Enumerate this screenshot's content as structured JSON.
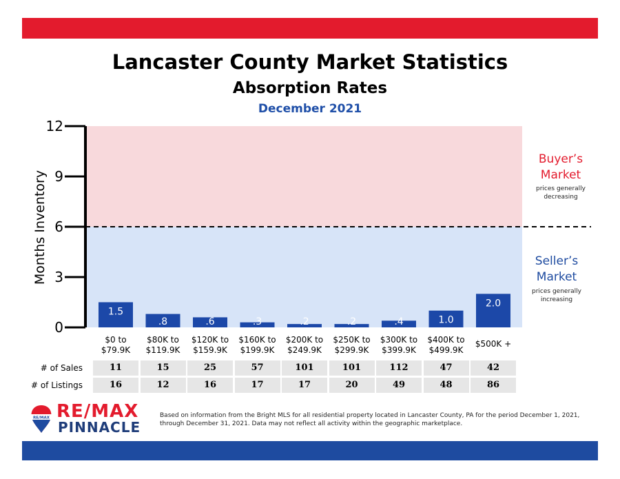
{
  "colors": {
    "red": "#e31b2d",
    "blue": "#1e4ba0",
    "pink_zone": "#f8d9dc",
    "blue_zone": "#d7e4f8",
    "bar": "#1c48a8"
  },
  "header": {
    "title": "Lancaster County Market Statistics",
    "subtitle": "Absorption Rates",
    "period": "December 2021"
  },
  "zones": {
    "buyer": {
      "title1": "Buyer’s",
      "title2": "Market",
      "note1": "prices generally",
      "note2": "decreasing"
    },
    "seller": {
      "title1": "Seller’s",
      "title2": "Market",
      "note1": "prices generally",
      "note2": "increasing"
    }
  },
  "chart_data": {
    "type": "bar",
    "ylabel": "Months Inventory",
    "ylim": [
      0,
      12
    ],
    "yticks": [
      "0",
      "3",
      "6",
      "9",
      "12"
    ],
    "threshold": 6,
    "categories": [
      [
        "$0 to",
        "$79.9K"
      ],
      [
        "$80K to",
        "$119.9K"
      ],
      [
        "$120K to",
        "$159.9K"
      ],
      [
        "$160K to",
        "$199.9K"
      ],
      [
        "$200K to",
        "$249.9K"
      ],
      [
        "$250K to",
        "$299.9K"
      ],
      [
        "$300K to",
        "$399.9K"
      ],
      [
        "$400K to",
        "$499.9K"
      ],
      [
        "$500K +"
      ]
    ],
    "values": [
      1.5,
      0.8,
      0.6,
      0.3,
      0.2,
      0.2,
      0.4,
      1.0,
      2.0
    ],
    "value_labels": [
      "1.5",
      ".8",
      ".6",
      ".3",
      ".2",
      ".2",
      ".4",
      "1.0",
      "2.0"
    ]
  },
  "table": {
    "sales_label": "# of Sales",
    "listings_label": "# of Listings",
    "sales": [
      "11",
      "15",
      "25",
      "57",
      "101",
      "101",
      "112",
      "47",
      "42"
    ],
    "listings": [
      "16",
      "12",
      "16",
      "17",
      "17",
      "20",
      "49",
      "48",
      "86"
    ]
  },
  "footer": {
    "brand_line1": "RE/MAX",
    "brand_line2": "PINNACLE",
    "balloon_text": "RE/MAX",
    "disclaimer": "Based on information from the Bright MLS for all residential property located in Lancaster County, PA for the period December 1, 2021, through December 31, 2021.  Data may not reflect all activity within the geographic marketplace."
  }
}
